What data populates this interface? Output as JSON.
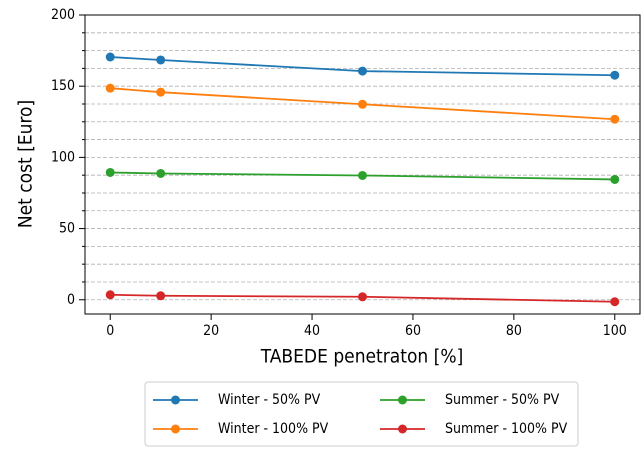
{
  "chart_data": {
    "type": "line",
    "x_label": "TABEDE penetraton [%]",
    "y_label": "Net cost [Euro]",
    "x": [
      0,
      10,
      50,
      100
    ],
    "series": [
      {
        "name": "Winter - 50% PV",
        "color": "#1f77b4",
        "values": [
          170.5,
          168.4,
          160.6,
          157.7
        ]
      },
      {
        "name": "Winter - 100% PV",
        "color": "#ff7f0e",
        "values": [
          148.6,
          145.8,
          137.3,
          126.8
        ]
      },
      {
        "name": "Summer - 50% PV",
        "color": "#2ca02c",
        "values": [
          89.4,
          88.7,
          87.3,
          84.5
        ]
      },
      {
        "name": "Summer - 100% PV",
        "color": "#d62728",
        "values": [
          3.5,
          2.8,
          2.1,
          -1.4
        ]
      }
    ],
    "xlim": [
      -5,
      105
    ],
    "ylim": [
      -10,
      200
    ],
    "xticks": [
      0,
      20,
      40,
      60,
      80,
      100
    ],
    "yticks": [
      0,
      50,
      100,
      150,
      200
    ],
    "yticks_minor": [
      -12.5,
      12.5,
      25,
      37.5,
      62.5,
      75,
      87.5,
      112.5,
      125,
      137.5,
      162.5,
      175,
      187.5
    ],
    "grid": true,
    "legend": "below"
  }
}
